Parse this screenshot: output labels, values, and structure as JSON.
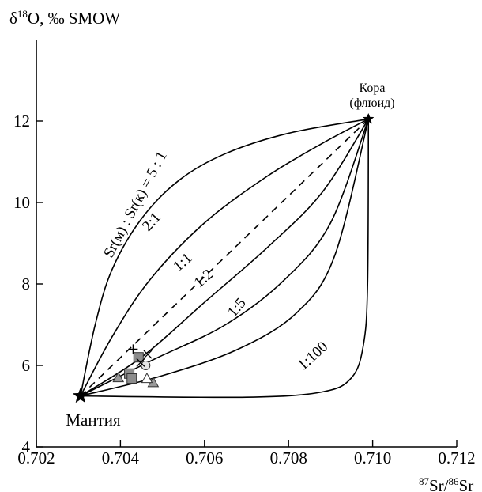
{
  "chart_data": {
    "type": "line",
    "ylabel_main": "δ",
    "ylabel_sup": "18",
    "ylabel_rest": "O, ‰ SMOW",
    "xlabel_sup1": "87",
    "xlabel_mid": "Sr/",
    "xlabel_sup2": "86",
    "xlabel_end": "Sr",
    "xlim": [
      0.702,
      0.712
    ],
    "ylim": [
      4,
      14
    ],
    "x_ticks": [
      0.702,
      0.704,
      0.706,
      0.708,
      0.71,
      0.712
    ],
    "x_tick_labels": [
      "0.702",
      "0.704",
      "0.706",
      "0.708",
      "0.710",
      "0.712"
    ],
    "y_ticks": [
      4,
      6,
      8,
      10,
      12
    ],
    "y_tick_labels": [
      "4",
      "6",
      "8",
      "10",
      "12"
    ],
    "endmembers": {
      "mantle": {
        "label": "Мантия",
        "x": 0.70305,
        "y": 5.25
      },
      "crust": {
        "label_line1": "Кора",
        "label_line2": "(флюид)",
        "x": 0.7099,
        "y": 12.05
      }
    },
    "series": [
      {
        "name": "Sr(м) : Sr(к) = 5 : 1",
        "dash": false,
        "points": [
          [
            0.70305,
            5.25
          ],
          [
            0.7034,
            7.0
          ],
          [
            0.7038,
            8.35
          ],
          [
            0.7045,
            9.6
          ],
          [
            0.7054,
            10.55
          ],
          [
            0.7065,
            11.2
          ],
          [
            0.708,
            11.7
          ],
          [
            0.7099,
            12.05
          ]
        ]
      },
      {
        "name": "2:1",
        "dash": false,
        "points": [
          [
            0.70305,
            5.25
          ],
          [
            0.7038,
            6.7
          ],
          [
            0.7047,
            8.1
          ],
          [
            0.706,
            9.5
          ],
          [
            0.7075,
            10.65
          ],
          [
            0.7088,
            11.45
          ],
          [
            0.7099,
            12.05
          ]
        ]
      },
      {
        "name": "",
        "dash": true,
        "points": [
          [
            0.70305,
            5.25
          ],
          [
            0.7099,
            12.05
          ]
        ]
      },
      {
        "name": "1:1",
        "dash": false,
        "points": [
          [
            0.70305,
            5.25
          ],
          [
            0.7045,
            6.2
          ],
          [
            0.706,
            7.55
          ],
          [
            0.7075,
            8.9
          ],
          [
            0.7088,
            10.25
          ],
          [
            0.7099,
            12.05
          ]
        ]
      },
      {
        "name": "1:2",
        "dash": false,
        "points": [
          [
            0.70305,
            5.25
          ],
          [
            0.7048,
            6.15
          ],
          [
            0.7065,
            7.0
          ],
          [
            0.7079,
            8.1
          ],
          [
            0.709,
            9.5
          ],
          [
            0.7099,
            12.05
          ]
        ]
      },
      {
        "name": "1:5",
        "dash": false,
        "points": [
          [
            0.70305,
            5.25
          ],
          [
            0.705,
            5.75
          ],
          [
            0.7068,
            6.4
          ],
          [
            0.7082,
            7.3
          ],
          [
            0.7091,
            8.7
          ],
          [
            0.7099,
            12.05
          ]
        ]
      },
      {
        "name": "1:100",
        "dash": false,
        "points": [
          [
            0.70305,
            5.25
          ],
          [
            0.707,
            5.22
          ],
          [
            0.7088,
            5.35
          ],
          [
            0.7095,
            5.7
          ],
          [
            0.70978,
            6.5
          ],
          [
            0.70988,
            8.0
          ],
          [
            0.7099,
            12.05
          ]
        ]
      }
    ],
    "curve_labels": [
      {
        "text": "Sr(м) : Sr(к) = 5 : 1",
        "x": 0.70445,
        "y": 9.9,
        "angle_deg": -62
      },
      {
        "text": "2:1",
        "x": 0.70482,
        "y": 9.45,
        "angle_deg": -48
      },
      {
        "text": "1:1",
        "x": 0.70555,
        "y": 8.45,
        "angle_deg": -41
      },
      {
        "text": "1:2",
        "x": 0.70605,
        "y": 8.05,
        "angle_deg": -41
      },
      {
        "text": "1:5",
        "x": 0.70685,
        "y": 7.35,
        "angle_deg": -50
      },
      {
        "text": "1:100",
        "x": 0.70865,
        "y": 6.15,
        "angle_deg": -42
      }
    ],
    "samples": [
      {
        "marker": "triangle-gray",
        "x": 0.70395,
        "y": 5.7
      },
      {
        "marker": "square-gray",
        "x": 0.70421,
        "y": 5.8
      },
      {
        "marker": "square-gray",
        "x": 0.70427,
        "y": 5.68
      },
      {
        "marker": "triangle-gray",
        "x": 0.70478,
        "y": 5.58
      },
      {
        "marker": "triangle-open",
        "x": 0.70463,
        "y": 5.68
      },
      {
        "marker": "square-gray",
        "x": 0.70443,
        "y": 6.2
      },
      {
        "marker": "circle-open",
        "x": 0.7046,
        "y": 6.0
      },
      {
        "marker": "plus",
        "x": 0.7043,
        "y": 6.4
      },
      {
        "marker": "cross",
        "x": 0.70465,
        "y": 6.27
      },
      {
        "marker": "cross",
        "x": 0.70448,
        "y": 6.07
      }
    ],
    "grid": false,
    "legend": "none"
  }
}
